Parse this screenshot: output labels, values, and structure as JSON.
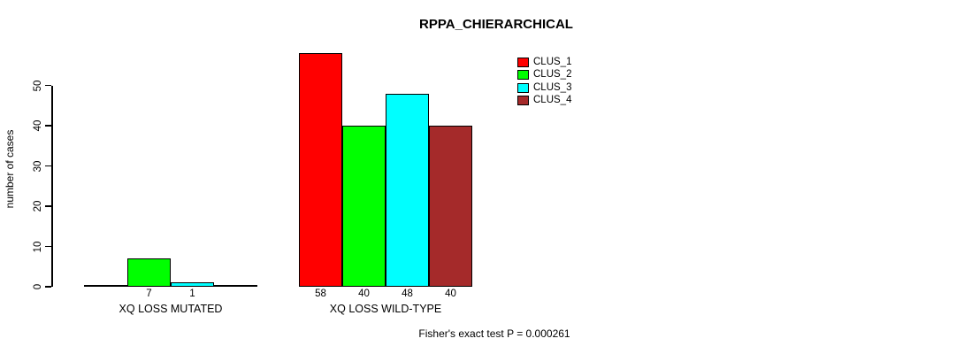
{
  "chart_data": {
    "type": "bar",
    "title": "RPPA_CHIERARCHICAL",
    "ylabel": "number of cases",
    "xlabel": "",
    "ylim": [
      0,
      58
    ],
    "yticks": [
      0,
      10,
      20,
      30,
      40,
      50
    ],
    "grid": false,
    "legend_position": "top-right",
    "bar_border_color": "#000000",
    "series": [
      {
        "name": "CLUS_1",
        "color": "#FF0000"
      },
      {
        "name": "CLUS_2",
        "color": "#00FF00"
      },
      {
        "name": "CLUS_3",
        "color": "#00FFFF"
      },
      {
        "name": "CLUS_4",
        "color": "#A52A2A"
      }
    ],
    "groups": [
      {
        "label": "XQ LOSS MUTATED",
        "values": [
          0,
          7,
          1,
          0
        ],
        "bar_labels": [
          "",
          "7",
          "1",
          ""
        ]
      },
      {
        "label": "XQ LOSS WILD-TYPE",
        "values": [
          58,
          40,
          48,
          40
        ],
        "bar_labels": [
          "58",
          "40",
          "48",
          "40"
        ]
      }
    ],
    "footnote": "Fisher's exact test P = 0.000261"
  }
}
